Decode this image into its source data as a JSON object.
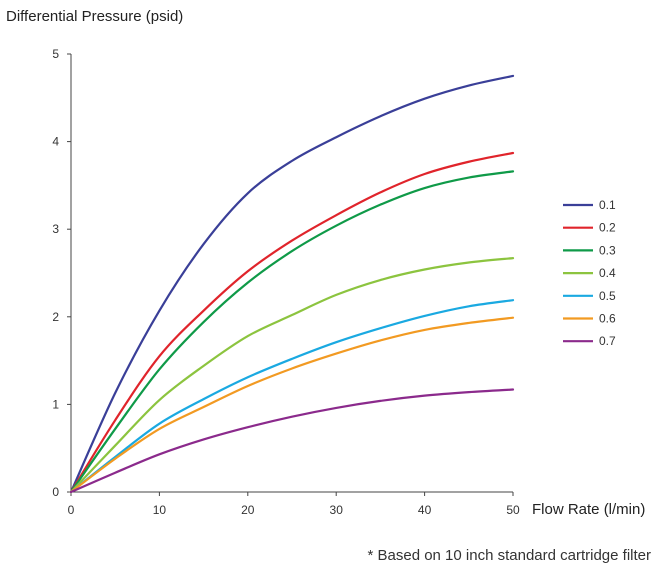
{
  "chart_data": {
    "type": "line",
    "title": "",
    "ylabel": "Differential Pressure (psid)",
    "xlabel": "Flow Rate (l/min)",
    "xlim": [
      0,
      50
    ],
    "ylim": [
      0,
      5
    ],
    "xticks": [
      0,
      10,
      20,
      30,
      40,
      50
    ],
    "yticks": [
      0,
      1,
      2,
      3,
      4,
      5
    ],
    "grid": false,
    "legend_position": "right",
    "footnote": "* Based on 10 inch standard cartridge filter",
    "x": [
      0,
      5,
      10,
      15,
      20,
      25,
      30,
      35,
      40,
      45,
      50
    ],
    "series": [
      {
        "name": "0.1",
        "color": "#3a3f98",
        "values": [
          0,
          1.13,
          2.07,
          2.83,
          3.41,
          3.78,
          4.05,
          4.29,
          4.49,
          4.64,
          4.75
        ]
      },
      {
        "name": "0.2",
        "color": "#e0242b",
        "values": [
          0,
          0.82,
          1.55,
          2.07,
          2.52,
          2.87,
          3.16,
          3.42,
          3.63,
          3.77,
          3.87
        ]
      },
      {
        "name": "0.3",
        "color": "#0f9a48",
        "values": [
          0,
          0.72,
          1.4,
          1.94,
          2.39,
          2.75,
          3.04,
          3.28,
          3.47,
          3.59,
          3.66
        ]
      },
      {
        "name": "0.4",
        "color": "#8cc43f",
        "values": [
          0,
          0.53,
          1.05,
          1.44,
          1.78,
          2.02,
          2.25,
          2.42,
          2.54,
          2.62,
          2.67
        ]
      },
      {
        "name": "0.5",
        "color": "#1aa9e1",
        "values": [
          0,
          0.4,
          0.78,
          1.06,
          1.31,
          1.52,
          1.71,
          1.87,
          2.01,
          2.12,
          2.19
        ]
      },
      {
        "name": "0.6",
        "color": "#f29a22",
        "values": [
          0,
          0.38,
          0.72,
          0.97,
          1.21,
          1.41,
          1.58,
          1.73,
          1.85,
          1.93,
          1.99
        ]
      },
      {
        "name": "0.7",
        "color": "#8b2a8c",
        "values": [
          0,
          0.22,
          0.43,
          0.6,
          0.74,
          0.86,
          0.96,
          1.04,
          1.1,
          1.14,
          1.17
        ]
      }
    ]
  }
}
